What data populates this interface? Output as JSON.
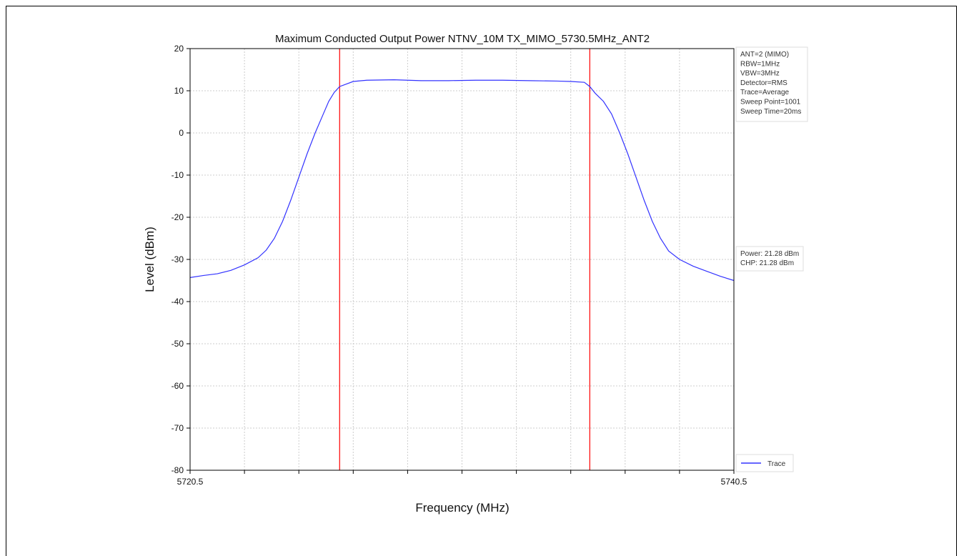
{
  "chart_data": {
    "type": "line",
    "title": "Maximum Conducted Output Power NTNV_10M TX_MIMO_5730.5MHz_ANT2",
    "xlabel": "Frequency (MHz)",
    "ylabel": "Level (dBm)",
    "xlim": [
      5720.5,
      5740.5
    ],
    "ylim": [
      -80,
      20
    ],
    "x_tick_labels": [
      "5720.5",
      "5740.5"
    ],
    "y_ticks": [
      20,
      10,
      0,
      -10,
      -20,
      -30,
      -40,
      -50,
      -60,
      -70,
      -80
    ],
    "grid": true,
    "series": [
      {
        "name": "Trace",
        "color": "#3333ff",
        "x": [
          5720.5,
          5721.0,
          5721.5,
          5722.0,
          5722.5,
          5723.0,
          5723.3,
          5723.6,
          5723.9,
          5724.2,
          5724.5,
          5724.8,
          5725.1,
          5725.4,
          5725.6,
          5725.8,
          5726.0,
          5726.5,
          5727.0,
          5728.0,
          5729.0,
          5730.0,
          5731.0,
          5732.0,
          5733.0,
          5734.0,
          5734.5,
          5735.0,
          5735.2,
          5735.4,
          5735.7,
          5736.0,
          5736.3,
          5736.6,
          5736.9,
          5737.2,
          5737.5,
          5737.8,
          5738.1,
          5738.5,
          5739.0,
          5739.5,
          5740.0,
          5740.5
        ],
        "y": [
          -34.3,
          -33.8,
          -33.4,
          -32.6,
          -31.3,
          -29.6,
          -27.8,
          -25.0,
          -21.0,
          -16.0,
          -10.5,
          -5.0,
          0.0,
          4.5,
          7.5,
          9.6,
          11.0,
          12.2,
          12.5,
          12.6,
          12.4,
          12.4,
          12.5,
          12.5,
          12.4,
          12.3,
          12.2,
          12.0,
          11.0,
          9.4,
          7.5,
          4.5,
          0.0,
          -5.0,
          -10.5,
          -16.0,
          -21.0,
          -25.0,
          -28.0,
          -30.0,
          -31.6,
          -32.8,
          -34.0,
          -35.0
        ]
      }
    ],
    "markers": [
      {
        "x": 5726.0,
        "color": "#ff0000"
      },
      {
        "x": 5735.2,
        "color": "#ff0000"
      }
    ],
    "info_box": [
      "ANT=2 (MIMO)",
      "RBW=1MHz",
      "VBW=3MHz",
      "Detector=RMS",
      "Trace=Average",
      "Sweep Point=1001",
      "Sweep Time=20ms"
    ],
    "power_box": [
      "Power: 21.28 dBm",
      "CHP: 21.28 dBm"
    ],
    "legend": {
      "label": "Trace",
      "position": "bottom-right"
    }
  }
}
